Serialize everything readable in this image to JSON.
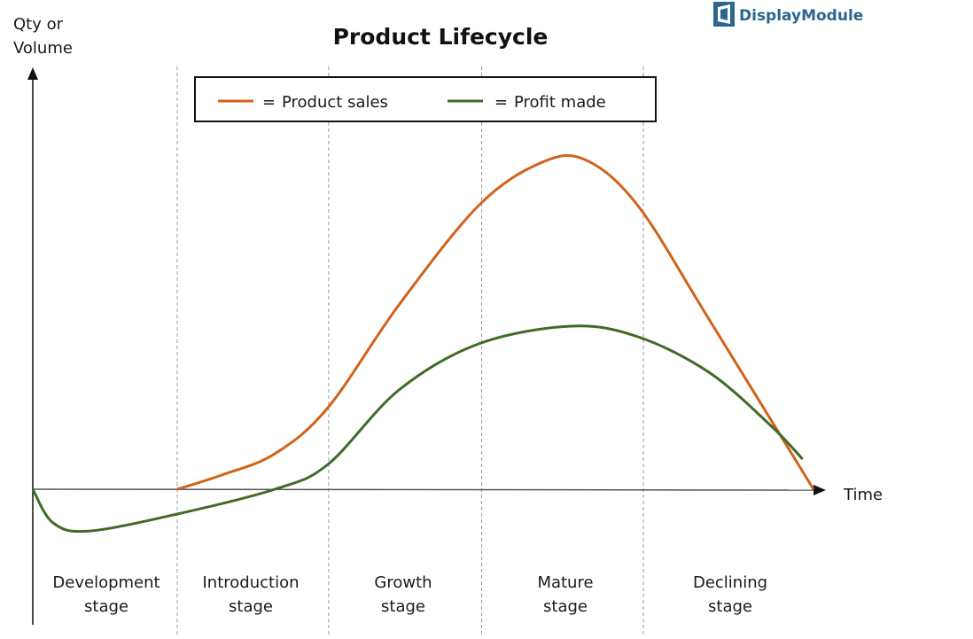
{
  "logo": {
    "text": "DisplayModule",
    "color": "#2c6690"
  },
  "chart_data": {
    "type": "line",
    "title": "Product Lifecycle",
    "ylabel_lines": [
      "Qty or",
      "Volume"
    ],
    "xlabel": "Time",
    "xlim": [
      0,
      100
    ],
    "ylim": [
      -15,
      100
    ],
    "grid": false,
    "legend": {
      "placement": "top",
      "equals": "=",
      "entries": [
        {
          "name": "Product sales",
          "color": "#d2621a"
        },
        {
          "name": "Profit made",
          "color": "#3f6b26"
        }
      ]
    },
    "stage_boundaries": [
      18.5,
      37.9,
      57.5,
      78.2
    ],
    "stages": [
      {
        "line1": "Development",
        "line2": "stage"
      },
      {
        "line1": "Introduction",
        "line2": "stage"
      },
      {
        "line1": "Growth",
        "line2": "stage"
      },
      {
        "line1": "Mature",
        "line2": "stage"
      },
      {
        "line1": "Declining",
        "line2": "stage"
      }
    ],
    "series": [
      {
        "name": "Product sales",
        "color": "#d2621a",
        "x": [
          18.5,
          24.2,
          31.0,
          37.8,
          46.9,
          57.1,
          65.0,
          70.7,
          77.5,
          86.6,
          100
        ],
        "y": [
          0,
          4,
          10,
          23,
          52,
          80,
          92,
          93,
          80,
          48,
          0
        ]
      },
      {
        "name": "Profit made",
        "color": "#3f6b26",
        "x": [
          0,
          2.6,
          7.2,
          18.5,
          31.0,
          37.8,
          46.9,
          57.1,
          69.0,
          77.5,
          86.6,
          94.5,
          98.6
        ],
        "y": [
          0,
          -9.5,
          -11.8,
          -7,
          0,
          7,
          28,
          41,
          46,
          43,
          33,
          18,
          8.5
        ]
      }
    ]
  }
}
